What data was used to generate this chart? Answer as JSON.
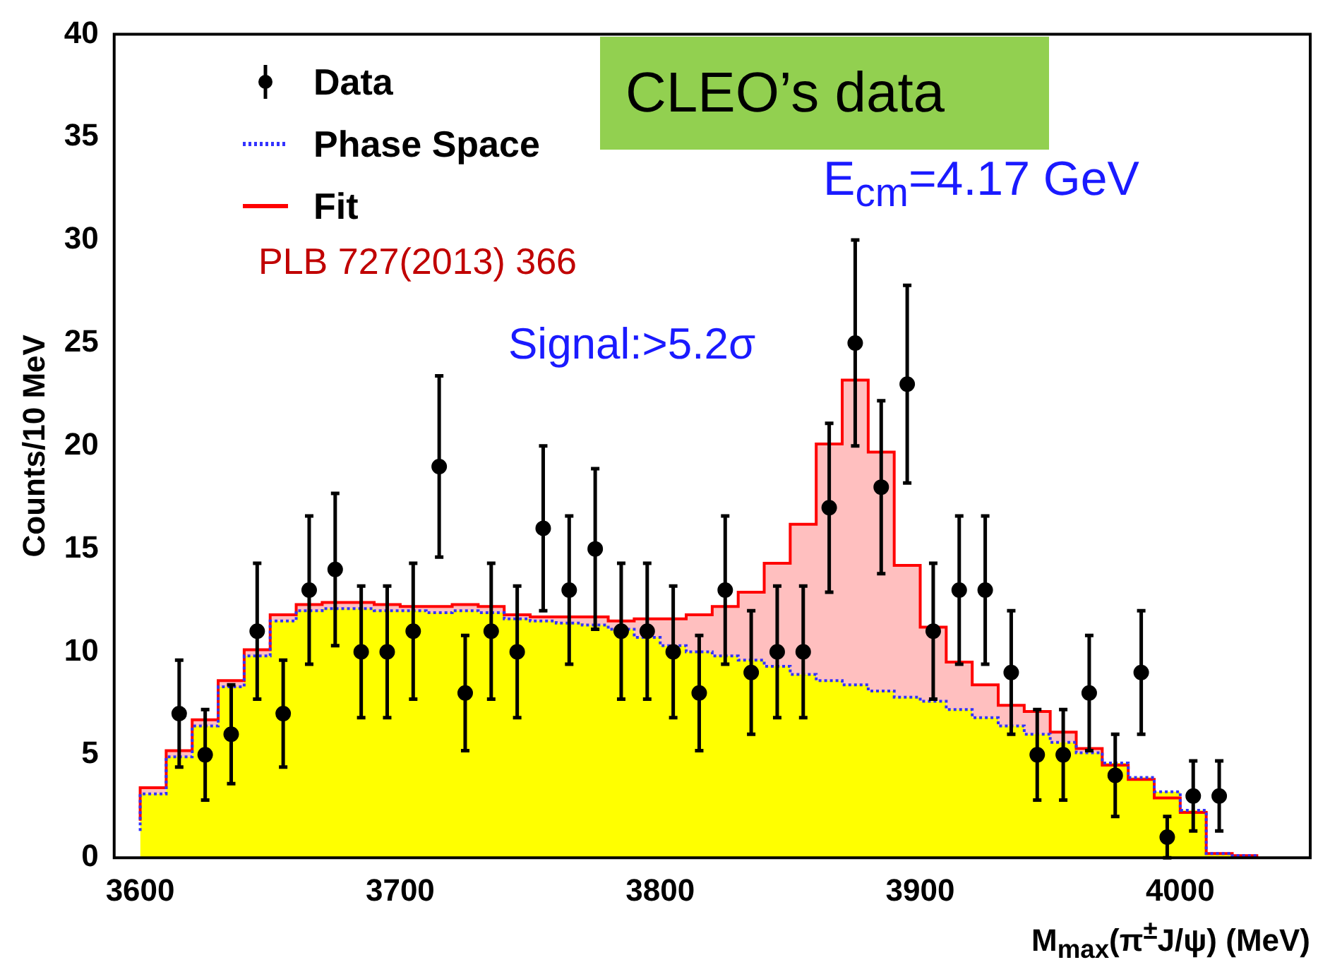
{
  "chart_data": {
    "type": "scatter",
    "xlabel": "M$_{max}$(π$^{±}$J/ψ) (MeV)",
    "ylabel": "Counts/10 MeV",
    "xlim": [
      3590,
      4050
    ],
    "xticks": [
      3600,
      3700,
      3800,
      3900,
      4000
    ],
    "ylim": [
      0,
      40
    ],
    "yticks": [
      0,
      5,
      10,
      15,
      20,
      25,
      30,
      35,
      40
    ],
    "grid": false,
    "legend": "top left",
    "annotations": [
      "CLEO’s data",
      "E$_{cm}$=4.17 GeV",
      "PLB 727(2013) 366",
      "Signal:>5.2σ"
    ],
    "series": [
      {
        "name": "Data",
        "type": "scatter",
        "color": "#000000",
        "marker": "circle",
        "x": [
          3615,
          3625,
          3635,
          3645,
          3655,
          3665,
          3675,
          3685,
          3695,
          3705,
          3715,
          3725,
          3735,
          3745,
          3755,
          3765,
          3775,
          3785,
          3795,
          3805,
          3815,
          3825,
          3835,
          3845,
          3855,
          3865,
          3875,
          3885,
          3895,
          3905,
          3915,
          3925,
          3935,
          3945,
          3955,
          3965,
          3975,
          3985,
          3995,
          4005,
          4015
        ],
        "values": [
          7,
          5,
          6,
          11,
          7,
          13,
          14,
          10,
          10,
          11,
          19,
          8,
          11,
          10,
          16,
          13,
          15,
          11,
          11,
          10,
          8,
          13,
          9,
          10,
          10,
          17,
          25,
          18,
          23,
          11,
          13,
          13,
          9,
          5,
          5,
          8,
          4,
          9,
          1,
          3,
          3
        ],
        "errors": [
          2.6,
          2.2,
          2.4,
          3.3,
          2.6,
          3.6,
          3.7,
          3.2,
          3.2,
          3.3,
          4.4,
          2.8,
          3.3,
          3.2,
          4,
          3.6,
          3.9,
          3.3,
          3.3,
          3.2,
          2.8,
          3.6,
          3,
          3.2,
          3.2,
          4.1,
          5,
          4.2,
          4.8,
          3.3,
          3.6,
          3.6,
          3,
          2.2,
          2.2,
          2.8,
          2,
          3,
          1,
          1.7,
          1.7
        ]
      },
      {
        "type": "area",
        "color": "#ffff00",
        "x": [
          3600,
          3610,
          3620,
          3630,
          3640,
          3650,
          3660,
          3670,
          3680,
          3690,
          3700,
          3710,
          3720,
          3730,
          3740,
          3750,
          3760,
          3770,
          3780,
          3790,
          3800,
          3810,
          3820,
          3830,
          3840,
          3850,
          3860,
          3870,
          3880,
          3890,
          3900,
          3910,
          3920,
          3930,
          3940,
          3950,
          3960,
          3970,
          3980,
          3990,
          4000,
          4010,
          4020,
          4030
        ],
        "values": [
          1.3,
          3.1,
          4.9,
          6.4,
          8.3,
          9.8,
          11.5,
          12.0,
          12.1,
          12.1,
          12.0,
          12.0,
          11.9,
          12.0,
          11.9,
          11.6,
          11.5,
          11.4,
          11.3,
          11.1,
          10.7,
          10.3,
          10.0,
          9.8,
          9.6,
          9.3,
          8.9,
          8.6,
          8.4,
          8.1,
          7.8,
          7.6,
          7.2,
          6.8,
          6.4,
          6.0,
          5.6,
          5.1,
          4.6,
          3.9,
          3.2,
          2.3,
          0.2,
          0.1
        ]
      },
      {
        "name": "Phase Space",
        "type": "step",
        "color": "#3333ff",
        "line_style": "dotted",
        "x": [
          3600,
          3610,
          3620,
          3630,
          3640,
          3650,
          3660,
          3670,
          3680,
          3690,
          3700,
          3710,
          3720,
          3730,
          3740,
          3750,
          3760,
          3770,
          3780,
          3790,
          3800,
          3810,
          3820,
          3830,
          3840,
          3850,
          3860,
          3870,
          3880,
          3890,
          3900,
          3910,
          3920,
          3930,
          3940,
          3950,
          3960,
          3970,
          3980,
          3990,
          4000,
          4010,
          4020,
          4030
        ],
        "values": [
          1.3,
          3.1,
          4.9,
          6.4,
          8.3,
          9.8,
          11.5,
          12.0,
          12.1,
          12.1,
          12.0,
          12.0,
          11.9,
          12.0,
          11.9,
          11.6,
          11.5,
          11.4,
          11.3,
          11.1,
          10.7,
          10.3,
          10.0,
          9.8,
          9.6,
          9.3,
          8.9,
          8.6,
          8.4,
          8.1,
          7.8,
          7.6,
          7.2,
          6.8,
          6.4,
          6.0,
          5.6,
          5.1,
          4.6,
          3.9,
          3.2,
          2.3,
          0.2,
          0.1
        ]
      },
      {
        "name": "Fit",
        "type": "step",
        "color": "#ff0000",
        "line_style": "solid",
        "x": [
          3600,
          3610,
          3620,
          3630,
          3640,
          3650,
          3660,
          3670,
          3680,
          3690,
          3700,
          3710,
          3720,
          3730,
          3740,
          3750,
          3760,
          3770,
          3780,
          3790,
          3800,
          3810,
          3820,
          3830,
          3840,
          3850,
          3860,
          3870,
          3880,
          3890,
          3900,
          3910,
          3920,
          3930,
          3940,
          3950,
          3960,
          3970,
          3980,
          3990,
          4000,
          4010,
          4020,
          4030
        ],
        "values": [
          1.8,
          3.4,
          5.2,
          6.7,
          8.6,
          10.1,
          11.8,
          12.3,
          12.4,
          12.4,
          12.3,
          12.2,
          12.2,
          12.3,
          12.2,
          11.8,
          11.7,
          11.7,
          11.7,
          11.5,
          11.6,
          11.6,
          11.8,
          12.2,
          12.9,
          14.3,
          16.2,
          20.1,
          23.2,
          19.7,
          14.2,
          11.2,
          9.5,
          8.4,
          7.4,
          7.1,
          6.1,
          5.3,
          4.5,
          3.8,
          2.9,
          2.2,
          0.2,
          0.1
        ]
      }
    ]
  }
}
